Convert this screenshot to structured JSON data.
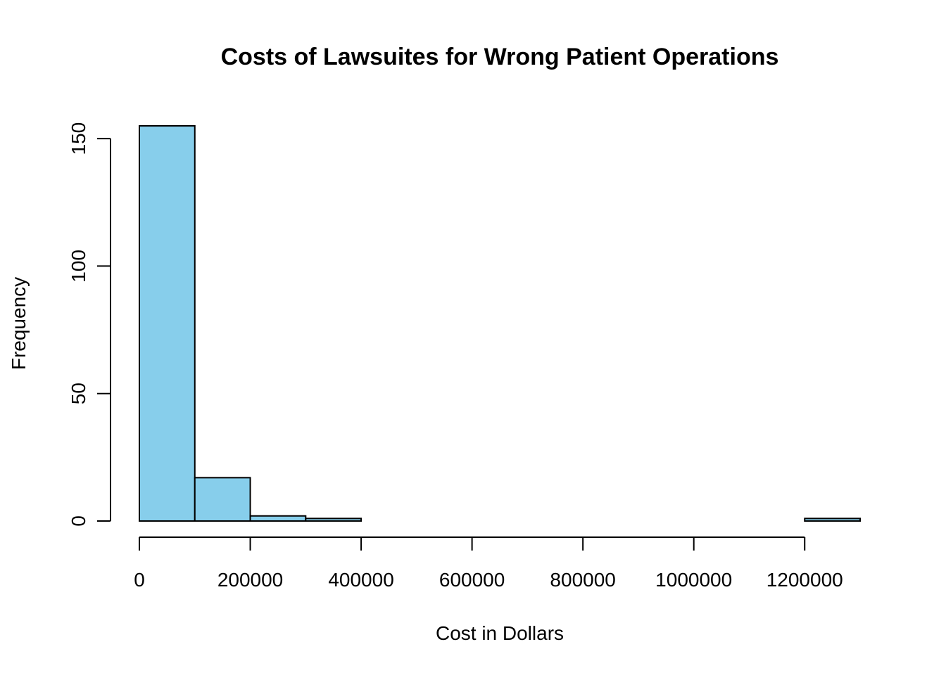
{
  "chart_data": {
    "type": "bar",
    "title": "Costs of Lawsuites for Wrong Patient Operations",
    "xlabel": "Cost in Dollars",
    "ylabel": "Frequency",
    "bar_color": "#87CEEB",
    "bins": [
      {
        "x0": 0,
        "x1": 100000,
        "count": 155
      },
      {
        "x0": 100000,
        "x1": 200000,
        "count": 17
      },
      {
        "x0": 200000,
        "x1": 300000,
        "count": 2
      },
      {
        "x0": 300000,
        "x1": 400000,
        "count": 1
      },
      {
        "x0": 400000,
        "x1": 500000,
        "count": 0
      },
      {
        "x0": 500000,
        "x1": 600000,
        "count": 0
      },
      {
        "x0": 600000,
        "x1": 700000,
        "count": 0
      },
      {
        "x0": 700000,
        "x1": 800000,
        "count": 0
      },
      {
        "x0": 800000,
        "x1": 900000,
        "count": 0
      },
      {
        "x0": 900000,
        "x1": 1000000,
        "count": 0
      },
      {
        "x0": 1000000,
        "x1": 1100000,
        "count": 0
      },
      {
        "x0": 1100000,
        "x1": 1200000,
        "count": 0
      },
      {
        "x0": 1200000,
        "x1": 1300000,
        "count": 1
      }
    ],
    "x_ticks": [
      0,
      200000,
      400000,
      600000,
      800000,
      1000000,
      1200000
    ],
    "x_tick_labels": [
      "0",
      "200000",
      "400000",
      "600000",
      "800000",
      "1000000",
      "1200000"
    ],
    "y_ticks": [
      0,
      50,
      100,
      150
    ],
    "y_tick_labels": [
      "0",
      "50",
      "100",
      "150"
    ],
    "xlim": [
      0,
      1300000
    ],
    "ylim": [
      0,
      155
    ],
    "grid": false,
    "legend": "none"
  }
}
